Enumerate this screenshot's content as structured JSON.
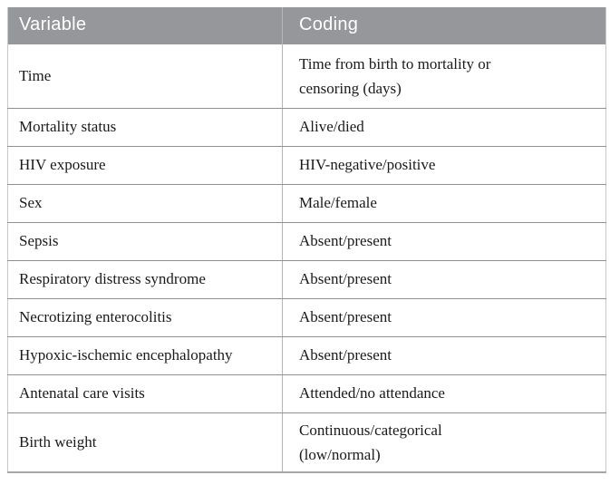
{
  "table": {
    "headers": [
      {
        "label": "Variable"
      },
      {
        "label": "Coding"
      }
    ],
    "rows": [
      {
        "variable": "Time",
        "coding": "Time from birth to mortality or\ncensoring (days)"
      },
      {
        "variable": "Mortality status",
        "coding": "Alive/died"
      },
      {
        "variable": "HIV exposure",
        "coding": "HIV-negative/positive"
      },
      {
        "variable": "Sex",
        "coding": "Male/female"
      },
      {
        "variable": "Sepsis",
        "coding": "Absent/present"
      },
      {
        "variable": "Respiratory distress syndrome",
        "coding": "Absent/present"
      },
      {
        "variable": "Necrotizing enterocolitis",
        "coding": "Absent/present"
      },
      {
        "variable": "Hypoxic-ischemic encephalopathy",
        "coding": "Absent/present"
      },
      {
        "variable": "Antenatal care visits",
        "coding": "Attended/no attendance"
      },
      {
        "variable": "Birth weight",
        "coding": "Continuous/categorical\n(low/normal)"
      }
    ]
  },
  "colors": {
    "header_bg": "#96979a",
    "header_text": "#ffffff",
    "row_line": "#8f9092",
    "col_divider": "#b4b5b7",
    "outer_border": "#c7c8ca",
    "bottom_border": "#a5a6a8",
    "body_text": "#1a1a1a",
    "page_bg": "#ffffff"
  }
}
